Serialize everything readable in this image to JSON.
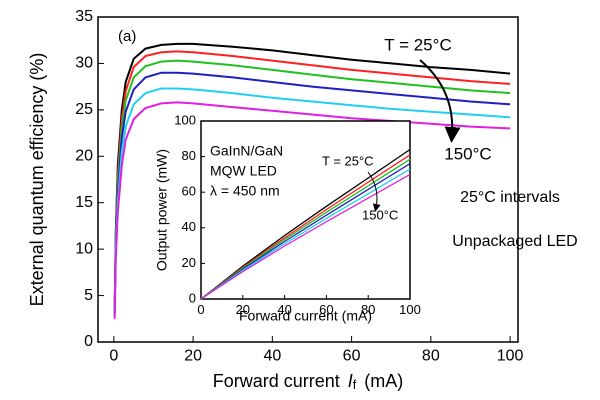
{
  "chart_data": [
    {
      "type": "line",
      "x_label": "Forward current",
      "x_label_var": "I",
      "x_label_sub": "f",
      "x_label_unit": "(mA)",
      "y_label": "External quantum efficiency (%)",
      "x": [
        0.2,
        0.5,
        1,
        2,
        3,
        5,
        8,
        12,
        16,
        20,
        30,
        40,
        50,
        60,
        70,
        80,
        90,
        100
      ],
      "series": [
        {
          "color": "#000000",
          "values": [
            3,
            12,
            19,
            25,
            28,
            30.5,
            31.6,
            32,
            32.1,
            32.1,
            31.8,
            31.4,
            30.9,
            30.4,
            30,
            29.6,
            29.3,
            28.9
          ]
        },
        {
          "color": "#ff2020",
          "values": [
            3,
            11.5,
            18,
            24,
            27,
            29.6,
            30.8,
            31.2,
            31.3,
            31.2,
            30.8,
            30.3,
            29.8,
            29.3,
            28.9,
            28.5,
            28.1,
            27.8
          ]
        },
        {
          "color": "#20c020",
          "values": [
            3,
            11,
            17,
            23,
            26,
            28.5,
            29.7,
            30.2,
            30.3,
            30.2,
            29.8,
            29.3,
            28.8,
            28.3,
            27.9,
            27.5,
            27.1,
            26.8
          ]
        },
        {
          "color": "#2020c0",
          "values": [
            2.8,
            10.5,
            16,
            22,
            24.8,
            27.2,
            28.5,
            29,
            29,
            28.9,
            28.5,
            28,
            27.5,
            27.1,
            26.7,
            26.3,
            25.9,
            25.6
          ]
        },
        {
          "color": "#20d0f0",
          "values": [
            2.7,
            10,
            15,
            20.5,
            23.2,
            25.6,
            26.8,
            27.3,
            27.3,
            27.2,
            26.8,
            26.3,
            25.9,
            25.5,
            25.1,
            24.8,
            24.5,
            24.2
          ]
        },
        {
          "color": "#e020e0",
          "values": [
            2.5,
            9,
            14,
            19,
            21.8,
            24,
            25.2,
            25.7,
            25.8,
            25.7,
            25.3,
            24.9,
            24.5,
            24.1,
            23.8,
            23.5,
            23.2,
            23
          ]
        }
      ],
      "xlim": [
        -4,
        102
      ],
      "ylim": [
        0,
        35
      ],
      "xticks": [
        0,
        20,
        40,
        60,
        80,
        100
      ],
      "yticks": [
        0,
        5,
        10,
        15,
        20,
        25,
        30,
        35
      ],
      "annotations": [
        "(a)",
        "T = 25°C",
        "150°C",
        "25°C intervals",
        "Unpackaged LED"
      ]
    },
    {
      "type": "line",
      "x_label": "Forward current (mA)",
      "y_label": "Output power (mW)",
      "x": [
        0,
        20,
        40,
        60,
        80,
        100
      ],
      "series": [
        {
          "color": "#000000",
          "values": [
            0,
            18.5,
            35.7,
            52.1,
            68,
            84
          ]
        },
        {
          "color": "#ff2020",
          "values": [
            0,
            17.8,
            34.4,
            50.2,
            65.6,
            81
          ]
        },
        {
          "color": "#20c020",
          "values": [
            0,
            17.3,
            33.4,
            48.7,
            63.6,
            78.5
          ]
        },
        {
          "color": "#2020c0",
          "values": [
            0,
            16.7,
            32.3,
            47.1,
            61.6,
            76
          ]
        },
        {
          "color": "#20d0f0",
          "values": [
            0,
            16.1,
            31,
            45.3,
            59.1,
            73
          ]
        },
        {
          "color": "#e020e0",
          "values": [
            0,
            15.4,
            29.8,
            43.4,
            56.7,
            70
          ]
        }
      ],
      "xlim": [
        0,
        100
      ],
      "ylim": [
        0,
        100
      ],
      "xticks": [
        0,
        20,
        40,
        60,
        80,
        100
      ],
      "yticks": [
        0,
        20,
        40,
        60,
        80,
        100
      ],
      "annotations": [
        "GaInN/GaN",
        "MQW LED",
        "λ = 450 nm",
        "T = 25°C",
        "150°C"
      ]
    }
  ]
}
